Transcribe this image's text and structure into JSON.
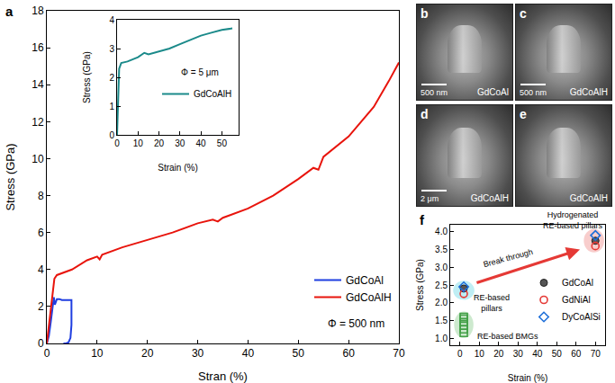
{
  "chart_data": [
    {
      "type": "line",
      "panel": "a",
      "x_label": "Stran (%)",
      "y_label": "Stress (GPa)",
      "xlim": [
        0,
        70
      ],
      "xticks": [
        0,
        10,
        20,
        30,
        40,
        50,
        60,
        70
      ],
      "ylim": [
        0,
        18
      ],
      "yticks": [
        0,
        2,
        4,
        6,
        8,
        10,
        12,
        14,
        16,
        18
      ],
      "grid": false,
      "legend": "lower right",
      "annotations": [
        {
          "text": "Φ = 500 nm"
        }
      ],
      "series": [
        {
          "name": "GdCoAl",
          "color": "#1f3ee0",
          "line_style": "solid",
          "x": [
            0,
            0.4,
            0.8,
            1.1,
            1.4,
            1.6,
            1.8,
            2.0,
            2.5,
            3.0,
            3.5,
            4.0,
            4.5,
            4.9,
            4.9,
            4.7,
            4.3,
            3.8,
            3.3
          ],
          "values": [
            0,
            0.4,
            1.2,
            1.9,
            2.5,
            2.1,
            2.3,
            2.4,
            2.4,
            2.35,
            2.35,
            2.35,
            2.35,
            2.35,
            1.0,
            0.3,
            0.05,
            0,
            0
          ]
        },
        {
          "name": "GdCoAlH",
          "color": "#e8140c",
          "line_style": "solid",
          "x": [
            0,
            1,
            1.5,
            2,
            5,
            8,
            10,
            10.5,
            11,
            15,
            20,
            25,
            30,
            33,
            34,
            35,
            40,
            45,
            50,
            53,
            54,
            55,
            60,
            65,
            68,
            70
          ],
          "values": [
            0,
            2.5,
            3.5,
            3.7,
            4.0,
            4.5,
            4.7,
            4.55,
            4.8,
            5.2,
            5.6,
            6.0,
            6.5,
            6.7,
            6.6,
            6.8,
            7.3,
            8.0,
            8.9,
            9.5,
            9.4,
            10.1,
            11.2,
            12.8,
            14.2,
            15.2
          ]
        }
      ]
    },
    {
      "type": "line",
      "x_label": "Strain (%)",
      "y_label": "Stress (GPa)",
      "xlim": [
        0,
        58
      ],
      "xticks": [
        0,
        10,
        20,
        30,
        40,
        50
      ],
      "ylim": [
        0,
        4
      ],
      "yticks": [
        0,
        1,
        2,
        3,
        4
      ],
      "grid": false,
      "legend": "right",
      "annotations": [
        {
          "text": "Φ = 5 μm"
        }
      ],
      "series": [
        {
          "name": "GdCoAlH",
          "color": "#1b8a8a",
          "line_style": "solid",
          "x": [
            0,
            1,
            2,
            5,
            10,
            13,
            15,
            20,
            25,
            30,
            35,
            40,
            45,
            50,
            55
          ],
          "values": [
            0,
            2.3,
            2.5,
            2.55,
            2.7,
            2.85,
            2.8,
            2.9,
            3.0,
            3.15,
            3.3,
            3.45,
            3.55,
            3.65,
            3.7
          ]
        }
      ]
    },
    {
      "type": "scatter",
      "panel": "f",
      "x_label": "Strain (%)",
      "y_label": "Stress (GPa)",
      "xlim": [
        -5,
        75
      ],
      "xticks": [
        0,
        10,
        20,
        30,
        40,
        50,
        60,
        70
      ],
      "ylim": [
        0.8,
        4.2
      ],
      "yticks": [
        {
          "value": 1,
          "label": "1.0"
        },
        1.5,
        {
          "value": 2,
          "label": "2.0"
        },
        2.5,
        {
          "value": 3,
          "label": "3.0"
        },
        3.5,
        {
          "value": 4,
          "label": "4.0"
        }
      ],
      "grid": false,
      "legend": "right",
      "annotations": [
        {
          "text": "Hydrogenated RE-based pillars",
          "x": 75,
          "y": 4.0
        },
        {
          "text": "Break through",
          "x": 25,
          "y": 3.25
        },
        {
          "text": "RE-based pillars",
          "x": 6,
          "y": 2.0
        },
        {
          "text": "RE-based BMGs",
          "x": 8,
          "y": 1.05
        }
      ],
      "series": [
        {
          "name": "GdCoAl",
          "color": "#555555",
          "marker": "circle",
          "x": [
            2,
            70
          ],
          "values": [
            2.4,
            3.75
          ]
        },
        {
          "name": "GdNiAl",
          "color": "#e53935",
          "marker": "circle-open",
          "x": [
            2,
            70
          ],
          "values": [
            2.25,
            3.6
          ]
        },
        {
          "name": "DyCoAlSi",
          "color": "#1e6fd9",
          "marker": "diamond-open",
          "x": [
            2,
            70
          ],
          "values": [
            2.45,
            3.9
          ]
        },
        {
          "color": "#43a047",
          "marker": "square-open",
          "x": [
            2,
            2,
            2,
            2,
            2,
            2
          ],
          "values": [
            1.15,
            1.25,
            1.35,
            1.45,
            1.55,
            1.6
          ]
        }
      ]
    }
  ],
  "images": [
    {
      "panel": "b",
      "sample": "GdCoAl",
      "scale_bar": "500 nm"
    },
    {
      "panel": "c",
      "sample": "GdCoAlH",
      "scale_bar": "500 nm"
    },
    {
      "panel": "d",
      "sample": "GdCoAlH",
      "scale_bar": "2 μm"
    },
    {
      "panel": "e",
      "sample": "GdCoAlH"
    }
  ]
}
